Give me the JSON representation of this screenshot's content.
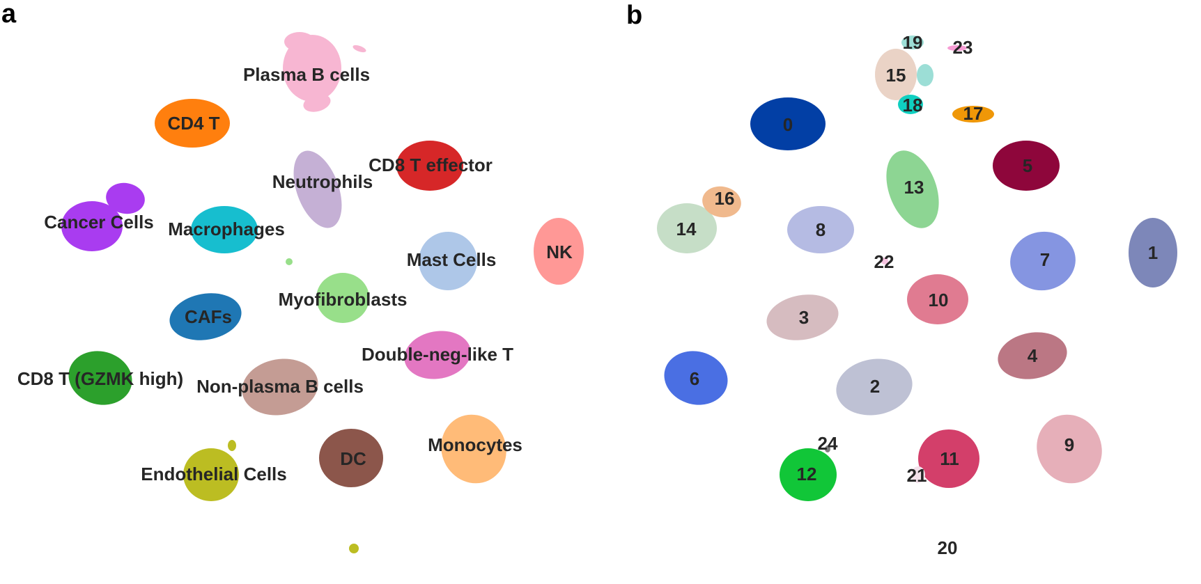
{
  "chart_data": [
    {
      "type": "scatter",
      "panel_label": "a",
      "title": "",
      "xlabel": "",
      "ylabel": "",
      "axes_visible": false,
      "grid": false,
      "legend": "none (labels placed on clusters)",
      "clusters": [
        {
          "name": "Plasma B cells",
          "color": "#f7b6d2"
        },
        {
          "name": "CD4 T",
          "color": "#ff7f0e"
        },
        {
          "name": "CD8 T effector",
          "color": "#d62728"
        },
        {
          "name": "Neutrophils",
          "color": "#c5b0d5"
        },
        {
          "name": "Cancer Cells",
          "color": "#a93cf0"
        },
        {
          "name": "Macrophages",
          "color": "#17becf"
        },
        {
          "name": "Mast Cells",
          "color": "#aec7e8"
        },
        {
          "name": "NK",
          "color": "#ff9896"
        },
        {
          "name": "Myofibroblasts",
          "color": "#98df8a"
        },
        {
          "name": "CAFs",
          "color": "#1f77b4"
        },
        {
          "name": "Double-neg-like T",
          "color": "#e377c2"
        },
        {
          "name": "CD8 T (GZMK high)",
          "color": "#2ca02c"
        },
        {
          "name": "Non-plasma B cells",
          "color": "#c49c94"
        },
        {
          "name": "Monocytes",
          "color": "#ffbb78"
        },
        {
          "name": "DC",
          "color": "#8c564b"
        },
        {
          "name": "Endothelial Cells",
          "color": "#bcbd22"
        }
      ]
    },
    {
      "type": "scatter",
      "panel_label": "b",
      "title": "",
      "xlabel": "",
      "ylabel": "",
      "axes_visible": false,
      "grid": false,
      "legend": "none (labels placed on clusters)",
      "clusters": [
        {
          "name": "0",
          "color": "#023fa5"
        },
        {
          "name": "1",
          "color": "#7d87b9"
        },
        {
          "name": "2",
          "color": "#bec1d4"
        },
        {
          "name": "3",
          "color": "#d6bcc0"
        },
        {
          "name": "4",
          "color": "#bb7784"
        },
        {
          "name": "5",
          "color": "#8e063b"
        },
        {
          "name": "6",
          "color": "#4a6fe3"
        },
        {
          "name": "7",
          "color": "#8595e1"
        },
        {
          "name": "8",
          "color": "#b5bbe3"
        },
        {
          "name": "9",
          "color": "#e6afb9"
        },
        {
          "name": "10",
          "color": "#e07b91"
        },
        {
          "name": "11",
          "color": "#d33f6a"
        },
        {
          "name": "12",
          "color": "#11c638"
        },
        {
          "name": "13",
          "color": "#8dd593"
        },
        {
          "name": "14",
          "color": "#c6dec7"
        },
        {
          "name": "15",
          "color": "#ead3c6"
        },
        {
          "name": "16",
          "color": "#f0b98d"
        },
        {
          "name": "17",
          "color": "#ef9708"
        },
        {
          "name": "18",
          "color": "#0fcfc0"
        },
        {
          "name": "19",
          "color": "#9cded6"
        },
        {
          "name": "20",
          "color": "#d5eae7"
        },
        {
          "name": "21",
          "color": "#f3e1eb"
        },
        {
          "name": "22",
          "color": "#f6c4e1"
        },
        {
          "name": "23",
          "color": "#f79cd4"
        },
        {
          "name": "24",
          "color": "#7f7f7f"
        }
      ]
    }
  ]
}
